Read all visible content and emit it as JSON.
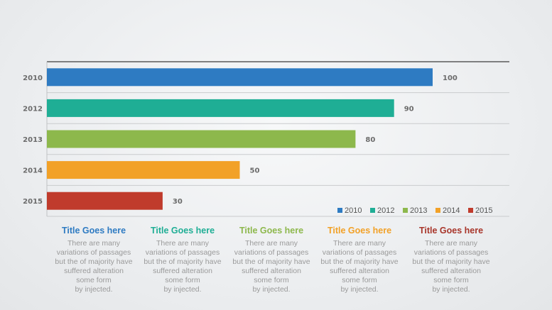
{
  "chart_data": {
    "type": "bar",
    "orientation": "horizontal",
    "categories": [
      "2010",
      "2012",
      "2013",
      "2014",
      "2015"
    ],
    "tick_labels": [
      "2010",
      "2012",
      "2013",
      "2014",
      "2015"
    ],
    "values": [
      100,
      90,
      80,
      50,
      30
    ],
    "data_labels": [
      "100",
      "90",
      "80",
      "50",
      "30"
    ],
    "xlim": [
      0,
      100
    ],
    "grid": true,
    "legend_position": "bottom-right",
    "legend": [
      "2010",
      "2012",
      "2013",
      "2014",
      "2015"
    ],
    "colors": [
      "#2e7bc2",
      "#1fae95",
      "#8db84c",
      "#f2a127",
      "#c03b2c"
    ],
    "title": "",
    "xlabel": "",
    "ylabel": ""
  },
  "columns": [
    {
      "title": "Title Goes here",
      "color": "#2e7bc2",
      "body": "There are many\nvariations of passages\nbut the of majority have\nsuffered alteration\nsome form\nby injected."
    },
    {
      "title": "Title Goes here",
      "color": "#1fae95",
      "body": "There are many\nvariations of passages\nbut the of majority have\nsuffered alteration\nsome form\nby injected."
    },
    {
      "title": "Title Goes here",
      "color": "#8db84c",
      "body": "There are many\nvariations of passages\nbut the of majority have\nsuffered alteration\nsome form\nby injected."
    },
    {
      "title": "Title Goes here",
      "color": "#f2a127",
      "body": "There are many\nvariations of passages\nbut the of majority have\nsuffered alteration\nsome form\nby injected."
    },
    {
      "title": "Title Goes here",
      "color": "#a8352a",
      "body": "There are many\nvariations of passages\nbut the of majority have\nsuffered alteration\nsome form\nby injected."
    }
  ]
}
